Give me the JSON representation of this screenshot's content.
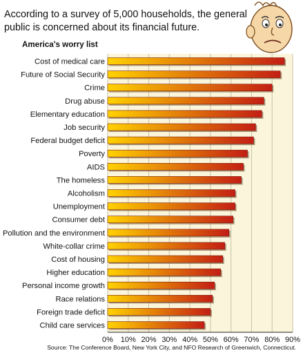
{
  "headline": "According to a survey of 5,000 households, the general public is concerned about its financial future.",
  "source": "Source: The Conference Board, New York City, and NFO Research of Greenwich, Connecticut.",
  "colors": {
    "plot_background": "#fbf5dc",
    "bar_start": "#ffd200",
    "bar_end": "#c31e14",
    "grid": "#c8c2a8"
  },
  "mascot_icon": "worried-face-icon",
  "chart_data": {
    "type": "bar",
    "orientation": "horizontal",
    "title": "America's worry list",
    "xlabel": "",
    "ylabel": "",
    "xlim": [
      0,
      90
    ],
    "x_ticks": [
      "0%",
      "10%",
      "20%",
      "30%",
      "40%",
      "50%",
      "60%",
      "70%",
      "80%",
      "90%"
    ],
    "grid": true,
    "categories": [
      "Cost of medical care",
      "Future of Social Security",
      "Crime",
      "Drug abuse",
      "Elementary education",
      "Job security",
      "Federal budget deficit",
      "Poverty",
      "AIDS",
      "The homeless",
      "Alcoholism",
      "Unemployment",
      "Consumer debt",
      "Pollution and the environment",
      "White-collar crime",
      "Cost of housing",
      "Higher education",
      "Personal income growth",
      "Race relations",
      "Foreign trade deficit",
      "Child care services"
    ],
    "values": [
      86,
      84,
      80,
      76,
      75,
      72,
      71,
      68,
      66,
      65,
      62,
      62,
      61,
      59,
      57,
      56,
      55,
      52,
      51,
      50,
      47
    ]
  }
}
